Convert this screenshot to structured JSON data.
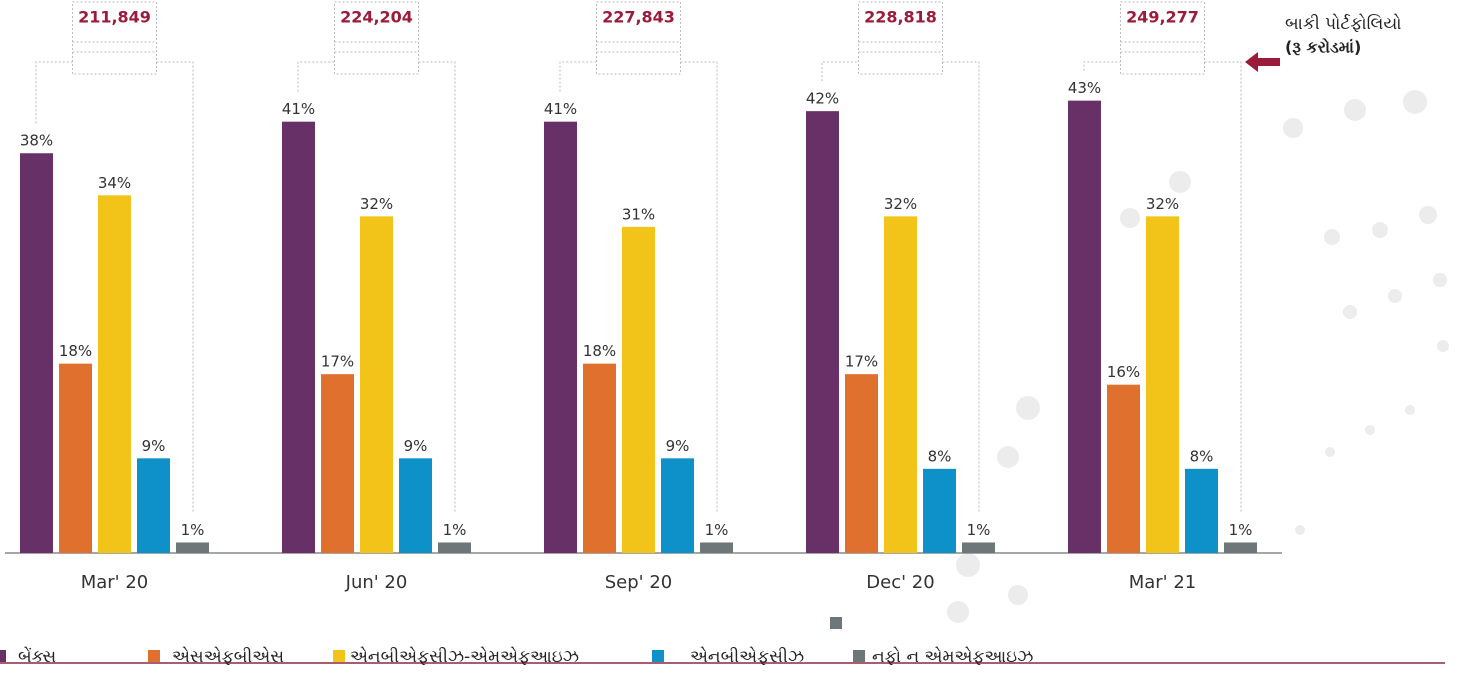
{
  "chart_data": {
    "type": "bar",
    "categories": [
      "Mar' 20",
      "Jun' 20",
      "Sep' 20",
      "Dec' 20",
      "Mar' 21"
    ],
    "series": [
      {
        "name": "બેંક્સ",
        "color": "#673067",
        "values": [
          38,
          41,
          41,
          42,
          43
        ],
        "value_labels": [
          "38%",
          "41%",
          "41%",
          "42%",
          "43%"
        ]
      },
      {
        "name": "એસએફબીએસ",
        "color": "#e0702e",
        "values": [
          18,
          17,
          18,
          17,
          16
        ],
        "value_labels": [
          "18%",
          "17%",
          "18%",
          "17%",
          "16%"
        ]
      },
      {
        "name": "એનબીએફસીઝ-એમએફઆઇઝ",
        "color": "#f2c318",
        "values": [
          34,
          32,
          31,
          32,
          32
        ],
        "value_labels": [
          "34%",
          "32%",
          "31%",
          "32%",
          "32%"
        ]
      },
      {
        "name": "એનબીએફસીઝ",
        "color": "#0e91c9",
        "values": [
          9,
          9,
          9,
          8,
          8
        ],
        "value_labels": [
          "9%",
          "9%",
          "9%",
          "8%",
          "8%"
        ]
      },
      {
        "name": "નફો ન એમએફઆઇઝ",
        "color": "#6d7679",
        "values": [
          1,
          1,
          1,
          1,
          1
        ],
        "value_labels": [
          "1%",
          "1%",
          "1%",
          "1%",
          "1%"
        ]
      }
    ],
    "totals": [
      {
        "value": 211849,
        "label": "211,849"
      },
      {
        "value": 224204,
        "label": "224,204"
      },
      {
        "value": 227843,
        "label": "227,843"
      },
      {
        "value": 228818,
        "label": "228,818"
      },
      {
        "value": 249277,
        "label": "249,277"
      }
    ],
    "annotation": [
      "બાકી પોર્ટફોલિયો",
      "(રૂ કરોડમાં)"
    ],
    "ylim": [
      0,
      50
    ],
    "grid": false
  }
}
